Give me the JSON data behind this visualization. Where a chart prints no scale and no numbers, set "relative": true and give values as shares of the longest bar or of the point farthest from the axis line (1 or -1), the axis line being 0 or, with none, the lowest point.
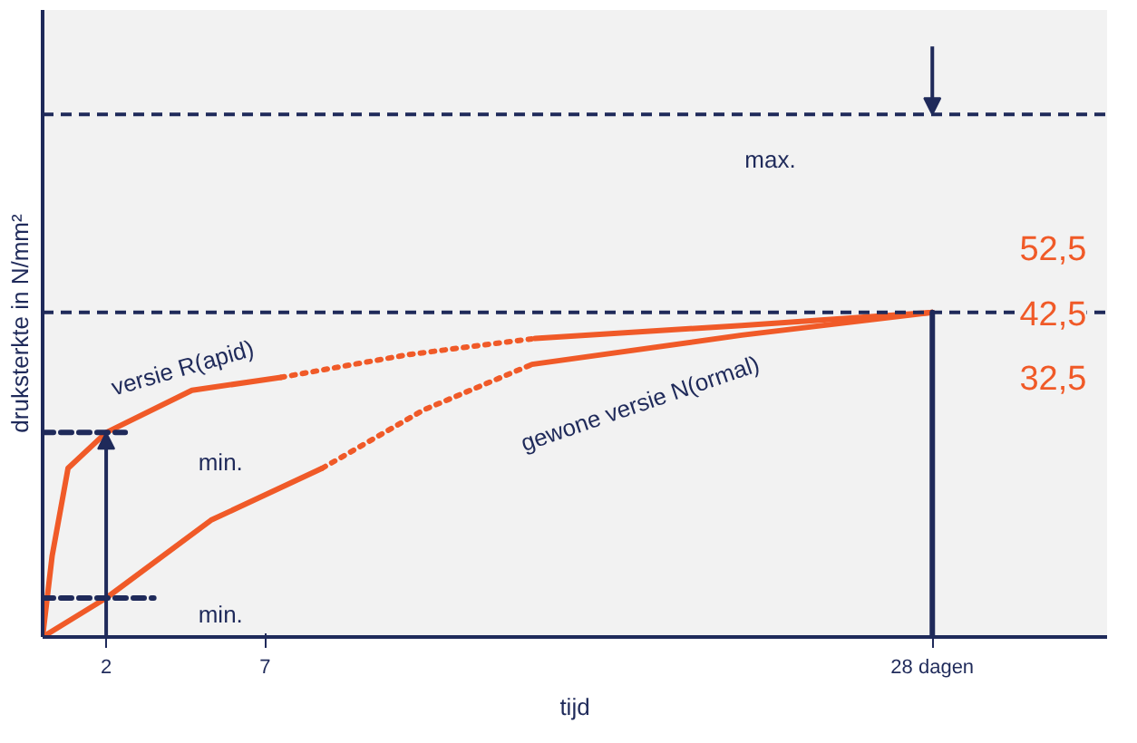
{
  "chart_data": {
    "type": "line",
    "relative": true,
    "ylabel": "druksterkte in N/mm²",
    "xlabel": "tijd",
    "xlim": [
      0,
      33.5
    ],
    "xticks": [
      2,
      7,
      {
        "value": 28,
        "label": "28 dagen"
      }
    ],
    "series": [
      {
        "color": "#f05a28",
        "line_style": "solid",
        "x": [
          0,
          0.3,
          0.8,
          2,
          4.7,
          7.5
        ],
        "values": [
          0,
          0.25,
          0.52,
          0.63,
          0.76,
          0.8
        ]
      },
      {
        "color": "#f05a28",
        "line_style": "dotted",
        "x": [
          7.5,
          11.5,
          15.5
        ],
        "values": [
          0.8,
          0.87,
          0.92
        ]
      },
      {
        "color": "#f05a28",
        "line_style": "solid",
        "x": [
          15.5,
          22,
          28
        ],
        "values": [
          0.92,
          0.96,
          1
        ]
      },
      {
        "color": "#f05a28",
        "line_style": "solid",
        "x": [
          0,
          1,
          2,
          5.3,
          8.8
        ],
        "values": [
          0,
          0.06,
          0.12,
          0.36,
          0.52
        ]
      },
      {
        "color": "#f05a28",
        "line_style": "dotted",
        "x": [
          8.8,
          12,
          15.4
        ],
        "values": [
          0.52,
          0.7,
          0.84
        ]
      },
      {
        "color": "#f05a28",
        "line_style": "solid",
        "x": [
          15.4,
          22,
          28
        ],
        "values": [
          0.84,
          0.93,
          1
        ]
      },
      {
        "color": "#1f2a5a",
        "line_style": "dashed",
        "x": [
          0,
          2.6
        ],
        "values": [
          0.63,
          0.63
        ]
      },
      {
        "color": "#1f2a5a",
        "line_style": "dashed",
        "x": [
          0,
          3.5
        ],
        "values": [
          0.12,
          0.12
        ]
      },
      {
        "color": "#1f2a5a",
        "line_style": "solid",
        "x": [
          28,
          28
        ],
        "values": [
          0,
          1
        ]
      }
    ],
    "ref_lines": [
      {
        "axis": "y",
        "value": 1.61,
        "color": "#1f2a5a",
        "line_style": "dashed"
      },
      {
        "axis": "y",
        "value": 1,
        "color": "#1f2a5a",
        "line_style": "dashed"
      }
    ],
    "annotations": [
      "max.",
      "min.",
      "min.",
      "versie R(apid)",
      "gewone versie N(ormal)",
      "52,5",
      "42,5",
      "32,5"
    ],
    "grid": false
  }
}
